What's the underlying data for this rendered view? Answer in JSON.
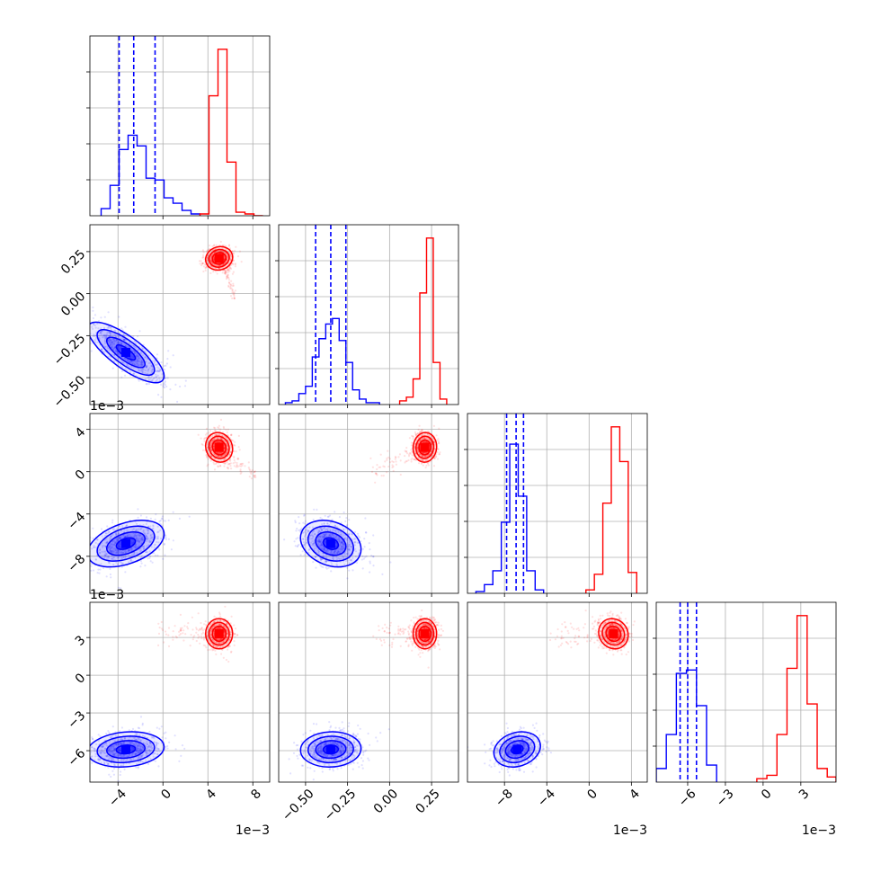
{
  "chart_data": {
    "type": "corner",
    "grid": true,
    "series": [
      {
        "color": "#0000ff",
        "hist_style": "step",
        "quantile_lines": "dashed"
      },
      {
        "color": "#ff0000",
        "hist_style": "step"
      }
    ],
    "params": [
      {
        "range": [
          -0.0065,
          0.0095
        ],
        "ticks": [
          -0.004,
          0,
          0.004,
          0.008
        ],
        "tick_labels": [
          "−4",
          "0",
          "4",
          "8"
        ],
        "offset_text": "1e−3"
      },
      {
        "range": [
          -0.66,
          0.41
        ],
        "ticks": [
          -0.5,
          -0.25,
          0,
          0.25
        ],
        "tick_labels": [
          "−0.50",
          "−0.25",
          "0.00",
          "0.25"
        ],
        "offset_text": ""
      },
      {
        "range": [
          -0.0115,
          0.0055
        ],
        "ticks": [
          -0.008,
          -0.004,
          0,
          0.004
        ],
        "tick_labels": [
          "−8",
          "−4",
          "0",
          "4"
        ],
        "offset_text": "1e−3"
      },
      {
        "range": [
          -0.0085,
          0.0058
        ],
        "ticks": [
          -0.006,
          -0.003,
          0,
          0.003
        ],
        "tick_labels": [
          "−6",
          "−3",
          "0",
          "3"
        ],
        "offset_text": "1e−3"
      }
    ],
    "diagonal": [
      {
        "quantiles": [
          -0.0039,
          -0.0026,
          -0.0007
        ],
        "blue": {
          "edges": [
            -0.0055,
            -0.0047,
            -0.0039,
            -0.0031,
            -0.0023,
            -0.0015,
            -0.0007,
            0.0001,
            0.0009,
            0.0017,
            0.0025,
            0.0033
          ],
          "counts": [
            0.04,
            0.17,
            0.37,
            0.45,
            0.39,
            0.21,
            0.2,
            0.1,
            0.07,
            0.03,
            0.01
          ]
        },
        "red": {
          "edges": [
            0.0033,
            0.0041,
            0.0049,
            0.0057,
            0.0065,
            0.0073,
            0.0081,
            0.0089
          ],
          "counts": [
            0.01,
            0.67,
            0.93,
            0.3,
            0.02,
            0.01,
            0.0
          ]
        }
      },
      {
        "quantiles": [
          -0.44,
          -0.35,
          -0.26
        ],
        "blue": {
          "edges": [
            -0.62,
            -0.58,
            -0.54,
            -0.5,
            -0.46,
            -0.42,
            -0.38,
            -0.34,
            -0.3,
            -0.26,
            -0.22,
            -0.18,
            -0.14,
            -0.1,
            -0.06
          ],
          "counts": [
            0.01,
            0.02,
            0.06,
            0.1,
            0.26,
            0.36,
            0.44,
            0.47,
            0.35,
            0.23,
            0.08,
            0.03,
            0.01,
            0.01
          ]
        },
        "red": {
          "edges": [
            0.06,
            0.1,
            0.14,
            0.18,
            0.22,
            0.26,
            0.3,
            0.34
          ],
          "counts": [
            0.02,
            0.04,
            0.14,
            0.61,
            0.91,
            0.23,
            0.03
          ]
        }
      },
      {
        "quantiles": [
          -0.0078,
          -0.0069,
          -0.0062
        ],
        "blue": {
          "edges": [
            -0.0107,
            -0.0099,
            -0.0091,
            -0.0083,
            -0.0075,
            -0.0067,
            -0.0059,
            -0.0051,
            -0.0043
          ],
          "counts": [
            0.01,
            0.05,
            0.13,
            0.41,
            0.86,
            0.56,
            0.13,
            0.02
          ]
        },
        "red": {
          "edges": [
            -0.0003,
            0.0005,
            0.0013,
            0.0021,
            0.0029,
            0.0037,
            0.0045
          ],
          "counts": [
            0.02,
            0.11,
            0.52,
            0.96,
            0.76,
            0.12
          ]
        }
      },
      {
        "quantiles": [
          -0.0066,
          -0.006,
          -0.0053
        ],
        "blue": {
          "edges": [
            -0.0085,
            -0.0077,
            -0.0069,
            -0.0061,
            -0.0053,
            -0.0045,
            -0.0037
          ],
          "counts": [
            0.08,
            0.28,
            0.64,
            0.66,
            0.45,
            0.1
          ]
        },
        "red": {
          "edges": [
            -0.0005,
            0.0003,
            0.0011,
            0.0019,
            0.0027,
            0.0035,
            0.0043,
            0.0051,
            0.0058
          ],
          "counts": [
            0.02,
            0.04,
            0.28,
            0.67,
            0.98,
            0.46,
            0.08,
            0.03
          ]
        }
      }
    ],
    "clusters": {
      "blue": {
        "mean": [
          -0.0033,
          -0.35,
          -0.0068,
          -0.0059
        ],
        "sd": [
          0.0017,
          0.09,
          0.0011,
          0.0007
        ]
      },
      "red": {
        "mean": [
          0.005,
          0.21,
          0.0023,
          0.0033
        ],
        "sd": [
          0.0006,
          0.035,
          0.0007,
          0.0006
        ]
      }
    },
    "correlations": {
      "blue": {
        "1-0": -0.78,
        "2-0": 0.42,
        "2-1": -0.25,
        "3-0": 0.15,
        "3-1": 0.05,
        "3-2": 0.2
      },
      "red": {
        "1-0": 0.1,
        "2-0": -0.1,
        "2-1": 0.05,
        "3-0": 0.0,
        "3-1": 0.0,
        "3-2": -0.1
      }
    }
  }
}
